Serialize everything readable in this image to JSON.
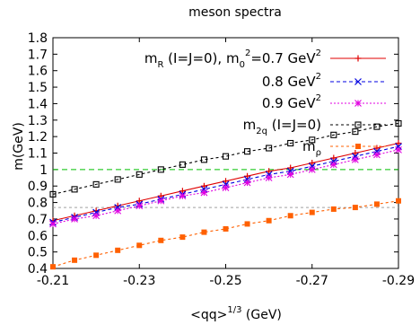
{
  "chart_data": {
    "type": "line",
    "title": "meson spectra",
    "ylabel": "m(GeV)",
    "xlabel_main": "<qq>",
    "xlabel_sup": "1/3",
    "xlabel_unit": " (GeV)",
    "xlim": [
      -0.21,
      -0.29
    ],
    "ylim": [
      0.4,
      1.8
    ],
    "xticks": [
      -0.21,
      -0.23,
      -0.25,
      -0.27,
      -0.29
    ],
    "xtick_labels": [
      "-0.21",
      "-0.23",
      "-0.25",
      "-0.27",
      "-0.29"
    ],
    "yticks": [
      0.4,
      0.5,
      0.6,
      0.7,
      0.8,
      0.9,
      1.0,
      1.1,
      1.2,
      1.3,
      1.4,
      1.5,
      1.6,
      1.7,
      1.8
    ],
    "ytick_labels": [
      "0.4",
      "0.5",
      "0.6",
      "0.7",
      "0.8",
      "0.9",
      "1",
      "1.1",
      "1.2",
      "1.3",
      "1.4",
      "1.5",
      "1.6",
      "1.7",
      "1.8"
    ],
    "x": [
      -0.21,
      -0.215,
      -0.22,
      -0.225,
      -0.23,
      -0.235,
      -0.24,
      -0.245,
      -0.25,
      -0.255,
      -0.26,
      -0.265,
      -0.27,
      -0.275,
      -0.28,
      -0.285,
      -0.29
    ],
    "reference_lines": [
      {
        "y": 1.0,
        "color": "#00c000",
        "dash": "6,4"
      },
      {
        "y": 0.77,
        "color": "#a0a0a0",
        "dash": "3,3"
      }
    ],
    "legend_position": "top-right",
    "series": [
      {
        "legend": {
          "main": "m",
          "sub": "R",
          "rest": " (I=J=0), m",
          "sub2": "0",
          "sup": "2",
          "rest2": "=0.7 GeV",
          "sup2": "2"
        },
        "color": "#e00000",
        "marker": "plus",
        "dash": "none",
        "values": [
          0.69,
          0.72,
          0.75,
          0.78,
          0.81,
          0.84,
          0.87,
          0.9,
          0.93,
          0.96,
          0.99,
          1.01,
          1.04,
          1.07,
          1.1,
          1.13,
          1.16
        ]
      },
      {
        "legend": {
          "main": "0.8 GeV",
          "sup": "2"
        },
        "color": "#0000e0",
        "marker": "x",
        "dash": "4,3",
        "values": [
          0.68,
          0.71,
          0.74,
          0.77,
          0.79,
          0.82,
          0.85,
          0.88,
          0.91,
          0.94,
          0.97,
          0.99,
          1.02,
          1.05,
          1.08,
          1.11,
          1.14
        ]
      },
      {
        "legend": {
          "main": "0.9 GeV",
          "sup": "2"
        },
        "color": "#e000e0",
        "marker": "star",
        "dash": "2,2",
        "values": [
          0.67,
          0.7,
          0.72,
          0.75,
          0.78,
          0.81,
          0.84,
          0.86,
          0.89,
          0.92,
          0.95,
          0.97,
          1.0,
          1.03,
          1.06,
          1.09,
          1.12
        ]
      },
      {
        "legend": {
          "main": "m",
          "sub": "2q",
          "rest": " (I=J=0)"
        },
        "color": "#000000",
        "marker": "square-open",
        "dash": "3,3",
        "values": [
          0.85,
          0.88,
          0.91,
          0.94,
          0.97,
          1.0,
          1.03,
          1.06,
          1.08,
          1.11,
          1.13,
          1.16,
          1.18,
          1.21,
          1.23,
          1.26,
          1.28
        ]
      },
      {
        "legend": {
          "main": "m",
          "sub": "ρ"
        },
        "color": "#ff6000",
        "marker": "square-filled",
        "dash": "3,3",
        "values": [
          0.41,
          0.45,
          0.48,
          0.51,
          0.54,
          0.57,
          0.59,
          0.62,
          0.64,
          0.67,
          0.69,
          0.72,
          0.74,
          0.76,
          0.77,
          0.79,
          0.81
        ]
      }
    ]
  }
}
